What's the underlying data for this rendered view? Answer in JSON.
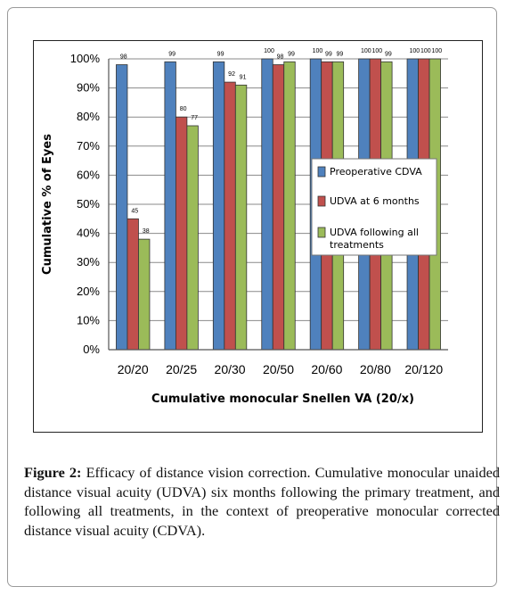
{
  "figure": {
    "label": "Figure 2:",
    "caption": "Efficacy of distance vision correction. Cumulative monocular unaided distance visual acuity (UDVA) six months following the primary treatment, and following all treatments, in the context of preoperative monocular corrected distance visual acuity (CDVA)."
  },
  "chart_data": {
    "type": "bar",
    "title": "",
    "xlabel": "Cumulative monocular Snellen VA (20/x)",
    "ylabel": "Cumulative % of Eyes",
    "ylim": [
      0,
      100
    ],
    "yticks": [
      0,
      10,
      20,
      30,
      40,
      50,
      60,
      70,
      80,
      90,
      100
    ],
    "ytick_suffix": "%",
    "grid": true,
    "legend_position": "right",
    "categories": [
      "20/20",
      "20/25",
      "20/30",
      "20/50",
      "20/60",
      "20/80",
      "20/120"
    ],
    "series": [
      {
        "name": "Preoperative CDVA",
        "color": "#4f81bd",
        "values": [
          98,
          99,
          99,
          100,
          100,
          100,
          100
        ]
      },
      {
        "name": "UDVA at 6 months",
        "color": "#c0504d",
        "values": [
          45,
          80,
          92,
          98,
          99,
          100,
          100
        ]
      },
      {
        "name": "UDVA following all treatments",
        "color": "#9bbb59",
        "values": [
          38,
          77,
          91,
          99,
          99,
          99,
          100
        ]
      }
    ]
  }
}
